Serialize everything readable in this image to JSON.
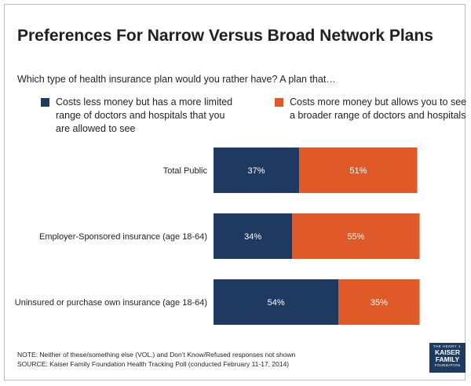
{
  "title": "Preferences For Narrow Versus Broad Network Plans",
  "subtitle": "Which type of health insurance plan would you rather have? A plan that…",
  "colors": {
    "series1": "#1f3a60",
    "series2": "#e05a29",
    "text": "#231f20",
    "border": "#bfbfbf"
  },
  "chart_data": {
    "type": "bar",
    "orientation": "horizontal",
    "stacked": true,
    "categories": [
      "Total Public",
      "Employer-Sponsored insurance (age 18-64)",
      "Uninsured or purchase own insurance (age 18-64)"
    ],
    "series": [
      {
        "name": "Costs less money but has a more limited range of doctors and hospitals that you are allowed to see",
        "values": [
          37,
          34,
          54
        ],
        "labels": [
          "37%",
          "34%",
          "54%"
        ],
        "color": "#1f3a60"
      },
      {
        "name": "Costs more money but allows you to see a broader range of doctors and hospitals",
        "values": [
          51,
          55,
          35
        ],
        "labels": [
          "51%",
          "55%",
          "35%"
        ],
        "color": "#e05a29"
      }
    ],
    "xlim": [
      0,
      100
    ],
    "grid": false,
    "legend": "top"
  },
  "notes": {
    "note": "NOTE: Neither of these/something else (VOL.) and Don’t Know/Refused responses not shown",
    "source": "SOURCE: Kaiser Family Foundation Health Tracking Poll (conducted February 11-17, 2014)"
  },
  "logo": {
    "line1": "THE HENRY J.",
    "line2a": "KAISER",
    "line2b": "FAMILY",
    "line3": "FOUNDATION"
  }
}
